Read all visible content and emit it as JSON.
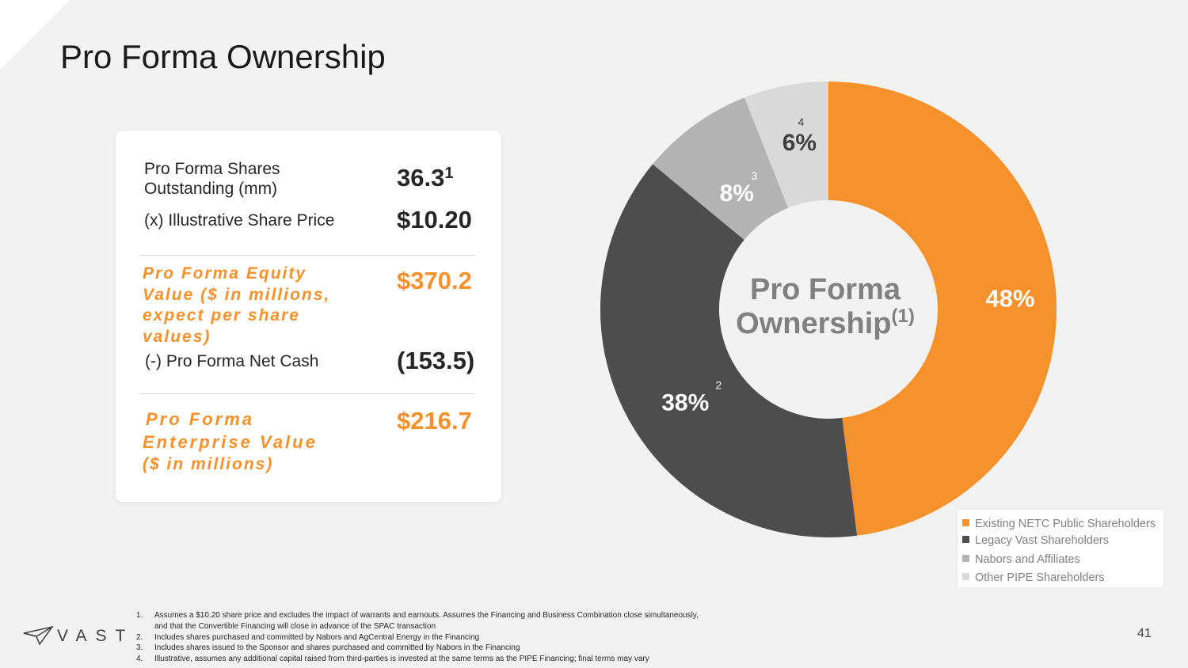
{
  "title": "Pro Forma Ownership",
  "card": {
    "shares_label": "Pro Forma Shares Outstanding (mm)",
    "shares_value": "36.3",
    "shares_sup": "1",
    "price_label": "(x) Illustrative Share Price",
    "price_value": "$10.20",
    "equity_label": "Pro Forma Equity Value ($ in millions, expect per share values)",
    "equity_value": "$370.2",
    "netcash_label": "(-) Pro Forma Net Cash",
    "netcash_value": "(153.5)",
    "ev_label_line1": "Pro Forma",
    "ev_label_line2": "Enterprise Value",
    "ev_label_line3": "($ in millions)",
    "ev_value": "$216.7"
  },
  "chart_data": {
    "type": "pie",
    "donut": true,
    "center_label": "Pro Forma Ownership",
    "center_label_sup": "(1)",
    "categories": [
      "Existing NETC Public Shareholders",
      "Legacy Vast Shareholders",
      "Nabors and Affiliates",
      "Other PIPE Shareholders"
    ],
    "values": [
      48,
      38,
      8,
      6
    ],
    "value_labels": [
      "48%",
      "38%",
      "8%",
      "6%"
    ],
    "footnote_marks": [
      "",
      "2",
      "3",
      "4"
    ],
    "colors": [
      "#f7912b",
      "#4d4d4d",
      "#b3b3b3",
      "#d9d9d9"
    ],
    "legend_position": "bottom-right"
  },
  "footnotes": [
    {
      "num": "1.",
      "text": "Assumes a $10.20 share price and excludes the impact of warrants and earnouts. Assumes the Financing and Business Combination close simultaneously, and that the Convertible Financing will close in advance of the SPAC transaction"
    },
    {
      "num": "2.",
      "text": "Includes shares purchased and committed by Nabors and AgCentral Energy in the Financing"
    },
    {
      "num": "3.",
      "text": "Includes shares issued to the Sponsor and shares purchased and committed by Nabors in the Financing"
    },
    {
      "num": "4.",
      "text": "Illustrative, assumes any additional capital raised from third-parties is invested at the same terms as the PIPE Financing; final terms may vary"
    }
  ],
  "logo_text": "VAST",
  "page_number": "41"
}
